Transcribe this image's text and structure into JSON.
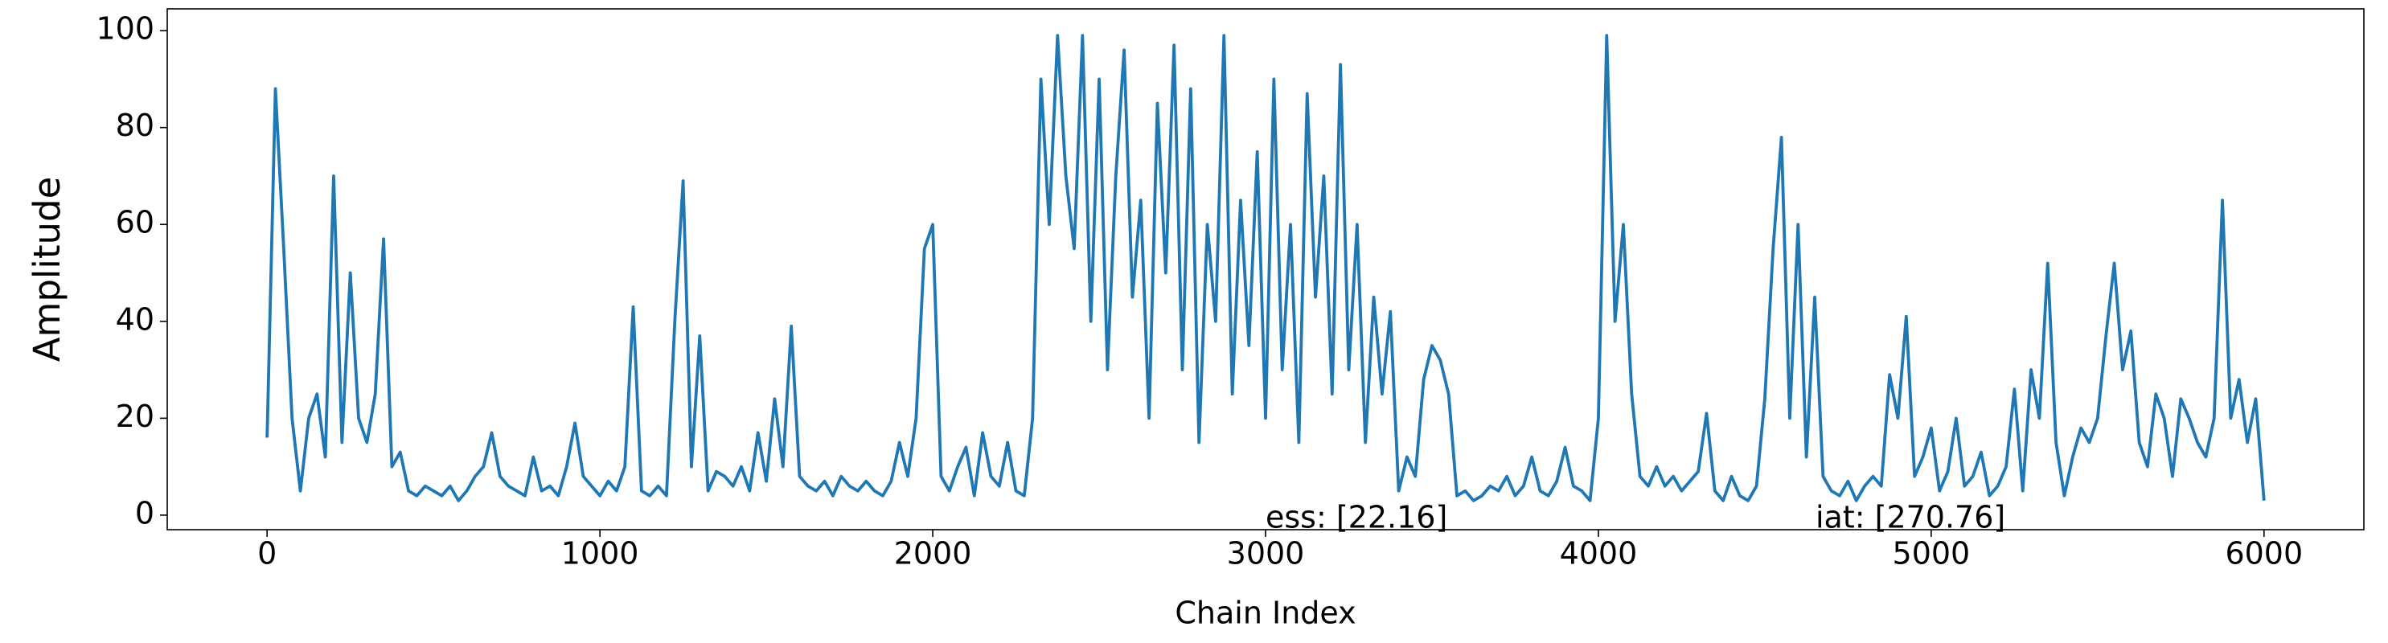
{
  "chart_data": {
    "type": "line",
    "xlabel": "Chain Index",
    "ylabel": "Amplitude",
    "annotations": [
      "ess: [22.16]",
      "iat: [270.76]"
    ],
    "color": "#1f77b4",
    "xlim": [
      -300,
      6300
    ],
    "xticks": [
      0,
      1000,
      2000,
      3000,
      4000,
      5000,
      6000
    ],
    "ylim": [
      -3,
      104.5
    ],
    "yticks": [
      0,
      20,
      40,
      60,
      80,
      100
    ],
    "x": [
      0,
      25,
      50,
      75,
      100,
      125,
      150,
      175,
      200,
      225,
      250,
      275,
      300,
      325,
      350,
      375,
      400,
      425,
      450,
      475,
      500,
      525,
      550,
      575,
      600,
      625,
      650,
      675,
      700,
      725,
      750,
      775,
      800,
      825,
      850,
      875,
      900,
      925,
      950,
      975,
      1000,
      1025,
      1050,
      1075,
      1100,
      1125,
      1150,
      1175,
      1200,
      1225,
      1250,
      1275,
      1300,
      1325,
      1350,
      1375,
      1400,
      1425,
      1450,
      1475,
      1500,
      1525,
      1550,
      1575,
      1600,
      1625,
      1650,
      1675,
      1700,
      1725,
      1750,
      1775,
      1800,
      1825,
      1850,
      1875,
      1900,
      1925,
      1950,
      1975,
      2000,
      2025,
      2050,
      2075,
      2100,
      2125,
      2150,
      2175,
      2200,
      2225,
      2250,
      2275,
      2300,
      2325,
      2350,
      2375,
      2400,
      2425,
      2450,
      2475,
      2500,
      2525,
      2550,
      2575,
      2600,
      2625,
      2650,
      2675,
      2700,
      2725,
      2750,
      2775,
      2800,
      2825,
      2850,
      2875,
      2900,
      2925,
      2950,
      2975,
      3000,
      3025,
      3050,
      3075,
      3100,
      3125,
      3150,
      3175,
      3200,
      3225,
      3250,
      3275,
      3300,
      3325,
      3350,
      3375,
      3400,
      3425,
      3450,
      3475,
      3500,
      3525,
      3550,
      3575,
      3600,
      3625,
      3650,
      3675,
      3700,
      3725,
      3750,
      3775,
      3800,
      3825,
      3850,
      3875,
      3900,
      3925,
      3950,
      3975,
      4000,
      4025,
      4050,
      4075,
      4100,
      4125,
      4150,
      4175,
      4200,
      4225,
      4250,
      4275,
      4300,
      4325,
      4350,
      4375,
      4400,
      4425,
      4450,
      4475,
      4500,
      4525,
      4550,
      4575,
      4600,
      4625,
      4650,
      4675,
      4700,
      4725,
      4750,
      4775,
      4800,
      4825,
      4850,
      4875,
      4900,
      4925,
      4950,
      4975,
      5000,
      5025,
      5050,
      5075,
      5100,
      5125,
      5150,
      5175,
      5200,
      5225,
      5250,
      5275,
      5300,
      5325,
      5350,
      5375,
      5400,
      5425,
      5450,
      5475,
      5500,
      5525,
      5550,
      5575,
      5600,
      5625,
      5650,
      5675,
      5700,
      5725,
      5750,
      5775,
      5800,
      5825,
      5850,
      5875,
      5900,
      5925,
      5950,
      5975,
      6000
    ],
    "values": [
      16,
      88,
      55,
      20,
      5,
      20,
      25,
      12,
      70,
      15,
      50,
      20,
      15,
      25,
      57,
      10,
      13,
      5,
      4,
      6,
      5,
      4,
      6,
      3,
      5,
      8,
      10,
      17,
      8,
      6,
      5,
      4,
      12,
      5,
      6,
      4,
      10,
      19,
      8,
      6,
      4,
      7,
      5,
      10,
      43,
      5,
      4,
      6,
      4,
      40,
      69,
      10,
      37,
      5,
      9,
      8,
      6,
      10,
      5,
      17,
      7,
      24,
      10,
      39,
      8,
      6,
      5,
      7,
      4,
      8,
      6,
      5,
      7,
      5,
      4,
      7,
      15,
      8,
      20,
      55,
      60,
      8,
      5,
      10,
      14,
      4,
      17,
      8,
      6,
      15,
      5,
      4,
      20,
      90,
      60,
      99,
      70,
      55,
      99,
      40,
      90,
      30,
      70,
      96,
      45,
      65,
      20,
      85,
      50,
      97,
      30,
      88,
      15,
      60,
      40,
      99,
      25,
      65,
      35,
      75,
      20,
      90,
      30,
      60,
      15,
      87,
      45,
      70,
      25,
      93,
      30,
      60,
      15,
      45,
      25,
      42,
      5,
      12,
      8,
      28,
      35,
      32,
      25,
      4,
      5,
      3,
      4,
      6,
      5,
      8,
      4,
      6,
      12,
      5,
      4,
      7,
      14,
      6,
      5,
      3,
      20,
      99,
      40,
      60,
      25,
      8,
      6,
      10,
      6,
      8,
      5,
      7,
      9,
      21,
      5,
      3,
      8,
      4,
      3,
      6,
      24,
      55,
      78,
      20,
      60,
      12,
      45,
      8,
      5,
      4,
      7,
      3,
      6,
      8,
      6,
      29,
      20,
      41,
      8,
      12,
      18,
      5,
      9,
      20,
      6,
      8,
      13,
      4,
      6,
      10,
      26,
      5,
      30,
      20,
      52,
      15,
      4,
      12,
      18,
      15,
      20,
      37,
      52,
      30,
      38,
      15,
      10,
      25,
      20,
      8,
      24,
      20,
      15,
      12,
      20,
      65,
      20,
      28,
      15,
      24,
      3
    ]
  }
}
